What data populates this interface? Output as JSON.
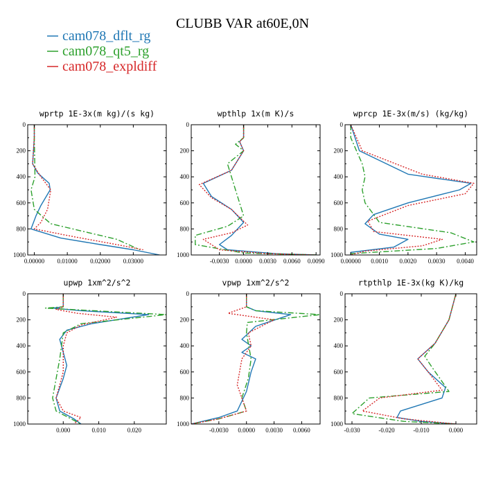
{
  "figure": {
    "title": "CLUBB VAR at60E,0N",
    "legend": [
      {
        "label": "cam078_dflt_rg",
        "color": "#1f77b4",
        "dash": "solid"
      },
      {
        "label": "cam078_qt5_rg",
        "color": "#2ca02c",
        "dash": "dashdot"
      },
      {
        "label": "cam078_expldiff",
        "color": "#d62728",
        "dash": "dotted"
      }
    ]
  },
  "chart_data": [
    {
      "type": "line",
      "title": "wprtp  1E-3x(m kg)/(s kg)",
      "xlim": [
        -0.002,
        0.04
      ],
      "ylim": [
        0,
        1000
      ],
      "y_reversed": true,
      "xticks": [
        0,
        0.01,
        0.02,
        0.03
      ],
      "xticklabels": [
        "0.00000",
        "0.01000",
        "0.02000",
        "0.03000"
      ],
      "yticks": [
        0,
        200,
        400,
        600,
        800,
        1000
      ],
      "yticklabels": [
        "0",
        "200",
        "400",
        "600",
        "800",
        "1000"
      ],
      "series": [
        {
          "name": "cam078_dflt_rg",
          "x": [
            0,
            0,
            -0.0005,
            0.001,
            0.0045,
            0.0048,
            0.002,
            0.0005,
            -0.001,
            0.008,
            0.02,
            0.03,
            0.038
          ],
          "y": [
            0,
            100,
            300,
            370,
            450,
            500,
            620,
            700,
            800,
            870,
            920,
            960,
            1000
          ]
        },
        {
          "name": "cam078_qt5_rg",
          "x": [
            0,
            0,
            0.0002,
            -0.001,
            0,
            0.005,
            0.015,
            0.025,
            0.032
          ],
          "y": [
            0,
            100,
            400,
            500,
            650,
            760,
            820,
            880,
            960
          ]
        },
        {
          "name": "cam078_expldiff",
          "x": [
            0,
            0,
            -0.0005,
            0.002,
            0.005,
            0.004,
            0.002,
            0,
            0.012,
            0.025,
            0.033
          ],
          "y": [
            0,
            100,
            300,
            400,
            500,
            650,
            750,
            800,
            860,
            920,
            960
          ]
        }
      ]
    },
    {
      "type": "line",
      "title": "wpthlp  1x(m K)/s",
      "xlim": [
        -0.0065,
        0.0095
      ],
      "ylim": [
        0,
        1000
      ],
      "y_reversed": true,
      "xticks": [
        -0.003,
        0,
        0.003,
        0.006,
        0.009
      ],
      "xticklabels": [
        "-0.0030",
        "0.0000",
        "0.0030",
        "0.0060",
        "0.0090"
      ],
      "yticks": [
        0,
        200,
        400,
        600,
        800,
        1000
      ],
      "yticklabels": [
        "0",
        "200",
        "400",
        "600",
        "800",
        "1000"
      ],
      "series": [
        {
          "name": "cam078_dflt_rg",
          "x": [
            0,
            0,
            -0.0005,
            0,
            -0.0015,
            -0.005,
            -0.004,
            -0.0015,
            0,
            -0.0015,
            -0.003,
            -0.002,
            0.004,
            0.009
          ],
          "y": [
            0,
            100,
            130,
            200,
            350,
            450,
            550,
            650,
            750,
            850,
            920,
            960,
            990,
            1000
          ]
        },
        {
          "name": "cam078_qt5_rg",
          "x": [
            0,
            0,
            -0.001,
            0,
            -0.002,
            -0.0015,
            -0.001,
            0,
            -0.002,
            -0.006,
            -0.006,
            0,
            0.009
          ],
          "y": [
            0,
            100,
            150,
            200,
            300,
            400,
            500,
            700,
            780,
            850,
            920,
            985,
            1000
          ]
        },
        {
          "name": "cam078_expldiff",
          "x": [
            0,
            0,
            -0.0005,
            0,
            -0.0015,
            -0.0055,
            -0.004,
            -0.0015,
            0.0005,
            -0.0015,
            -0.005,
            -0.003,
            0.003,
            0.009
          ],
          "y": [
            0,
            100,
            130,
            200,
            350,
            460,
            560,
            650,
            770,
            830,
            880,
            960,
            990,
            1000
          ]
        }
      ]
    },
    {
      "type": "line",
      "title": "wprcp  1E-3x(m/s) (kg/kg)",
      "xlim": [
        -0.0002,
        0.0044
      ],
      "ylim": [
        0,
        1000
      ],
      "y_reversed": true,
      "xticks": [
        0,
        0.001,
        0.002,
        0.003,
        0.004
      ],
      "xticklabels": [
        "0.00000",
        "0.0010",
        "0.0020",
        "0.0030",
        "0.0040"
      ],
      "yticks": [
        0,
        200,
        400,
        600,
        800,
        1000
      ],
      "yticklabels": [
        "0",
        "200",
        "400",
        "600",
        "800",
        "1000"
      ],
      "series": [
        {
          "name": "cam078_dflt_rg",
          "x": [
            0,
            0.0003,
            0.002,
            0.0042,
            0.0038,
            0.002,
            0.0008,
            0.0005,
            0.001,
            0.002,
            0.0015,
            0,
            0
          ],
          "y": [
            0,
            200,
            380,
            450,
            500,
            600,
            690,
            760,
            840,
            880,
            940,
            980,
            1000
          ]
        },
        {
          "name": "cam078_qt5_rg",
          "x": [
            0,
            0,
            0.0002,
            0.0004,
            0.0005,
            0.0004,
            0.0005,
            0.001,
            0.0035,
            0.0043,
            0.003,
            0,
            0
          ],
          "y": [
            0,
            100,
            200,
            300,
            400,
            500,
            600,
            750,
            830,
            900,
            950,
            990,
            1000
          ]
        },
        {
          "name": "cam078_expldiff",
          "x": [
            0,
            0.0004,
            0.0025,
            0.0043,
            0.004,
            0.002,
            0.0006,
            0.0008,
            0.0032,
            0.0025,
            0.0005,
            0
          ],
          "y": [
            0,
            200,
            380,
            450,
            530,
            620,
            740,
            820,
            880,
            930,
            970,
            1000
          ]
        }
      ]
    },
    {
      "type": "line",
      "title": "upwp  1xm^2/s^2",
      "xlim": [
        -0.01,
        0.029
      ],
      "ylim": [
        0,
        1000
      ],
      "y_reversed": true,
      "xticks": [
        0,
        0.01,
        0.02
      ],
      "xticklabels": [
        "0.000",
        "0.010",
        "0.020"
      ],
      "yticks": [
        0,
        200,
        400,
        600,
        800,
        1000
      ],
      "yticklabels": [
        "0",
        "200",
        "400",
        "600",
        "800",
        "1000"
      ],
      "series": [
        {
          "name": "cam078_dflt_rg",
          "x": [
            0,
            0,
            -0.003,
            0.005,
            0.024,
            0.008,
            0.001,
            -0.001,
            0,
            0.001,
            0,
            -0.002,
            -0.001,
            0.003,
            0.005
          ],
          "y": [
            0,
            100,
            110,
            130,
            160,
            230,
            280,
            350,
            450,
            550,
            650,
            800,
            900,
            960,
            1000
          ]
        },
        {
          "name": "cam078_qt5_rg",
          "x": [
            0,
            0,
            -0.005,
            0.029,
            0.005,
            0,
            -0.001,
            -0.003,
            -0.002,
            0.005
          ],
          "y": [
            0,
            100,
            110,
            160,
            230,
            300,
            500,
            800,
            900,
            1000
          ]
        },
        {
          "name": "cam078_expldiff",
          "x": [
            0,
            0,
            -0.002,
            0.004,
            0.015,
            0.005,
            0.001,
            0,
            0,
            -0.002,
            0,
            0.005,
            0.003
          ],
          "y": [
            0,
            100,
            120,
            150,
            180,
            240,
            300,
            400,
            600,
            800,
            900,
            950,
            1000
          ]
        }
      ]
    },
    {
      "type": "line",
      "title": "vpwp  1xm^2/s^2",
      "xlim": [
        -0.006,
        0.008
      ],
      "ylim": [
        0,
        1000
      ],
      "y_reversed": true,
      "xticks": [
        -0.003,
        0,
        0.003,
        0.006
      ],
      "xticklabels": [
        "-0.0030",
        "0.0000",
        "0.0030",
        "0.0060"
      ],
      "yticks": [
        0,
        200,
        400,
        600,
        800,
        1000
      ],
      "yticklabels": [
        "0",
        "200",
        "400",
        "600",
        "800",
        "1000"
      ],
      "series": [
        {
          "name": "cam078_dflt_rg",
          "x": [
            0,
            0,
            0.001,
            0.0048,
            0.001,
            -0.0005,
            0.0005,
            -0.0005,
            0.001,
            0.0005,
            0,
            -0.001,
            -0.003,
            -0.006
          ],
          "y": [
            0,
            100,
            130,
            160,
            250,
            350,
            400,
            450,
            500,
            600,
            750,
            900,
            950,
            1000
          ]
        },
        {
          "name": "cam078_qt5_rg",
          "x": [
            0,
            0,
            0.001,
            0.008,
            0.0001,
            0,
            0.0005,
            0.0002,
            -0.0005,
            0,
            -0.003,
            -0.006
          ],
          "y": [
            0,
            100,
            130,
            160,
            220,
            300,
            500,
            650,
            800,
            900,
            960,
            1000
          ]
        },
        {
          "name": "cam078_expldiff",
          "x": [
            0,
            0,
            -0.002,
            0.003,
            0.0002,
            0.0005,
            -0.0005,
            -0.001,
            0,
            -0.003,
            -0.006
          ],
          "y": [
            0,
            100,
            150,
            200,
            300,
            400,
            500,
            700,
            900,
            960,
            1000
          ]
        }
      ]
    },
    {
      "type": "line",
      "title": "rtpthlp  1E-3x(kg K)/kg",
      "xlim": [
        -0.032,
        0.006
      ],
      "ylim": [
        0,
        1000
      ],
      "y_reversed": true,
      "xticks": [
        -0.03,
        -0.02,
        -0.01,
        0
      ],
      "xticklabels": [
        "-0.030",
        "-0.020",
        "-0.010",
        "0.000"
      ],
      "yticks": [
        0,
        200,
        400,
        600,
        800,
        1000
      ],
      "yticklabels": [
        "0",
        "200",
        "400",
        "600",
        "800",
        "1000"
      ],
      "series": [
        {
          "name": "cam078_dflt_rg",
          "x": [
            0,
            -0.002,
            -0.006,
            -0.011,
            -0.008,
            -0.003,
            -0.004,
            -0.016,
            -0.017,
            -0.01,
            0
          ],
          "y": [
            0,
            200,
            380,
            500,
            600,
            720,
            800,
            900,
            950,
            980,
            1000
          ]
        },
        {
          "name": "cam078_qt5_rg",
          "x": [
            0,
            -0.002,
            -0.006,
            -0.009,
            -0.007,
            -0.002,
            -0.025,
            -0.03,
            -0.015,
            0
          ],
          "y": [
            0,
            200,
            380,
            480,
            560,
            750,
            800,
            920,
            980,
            1000
          ]
        },
        {
          "name": "cam078_expldiff",
          "x": [
            0,
            -0.002,
            -0.006,
            -0.011,
            -0.008,
            -0.004,
            -0.022,
            -0.027,
            -0.015,
            0
          ],
          "y": [
            0,
            200,
            380,
            500,
            600,
            740,
            800,
            900,
            960,
            1000
          ]
        }
      ]
    }
  ]
}
